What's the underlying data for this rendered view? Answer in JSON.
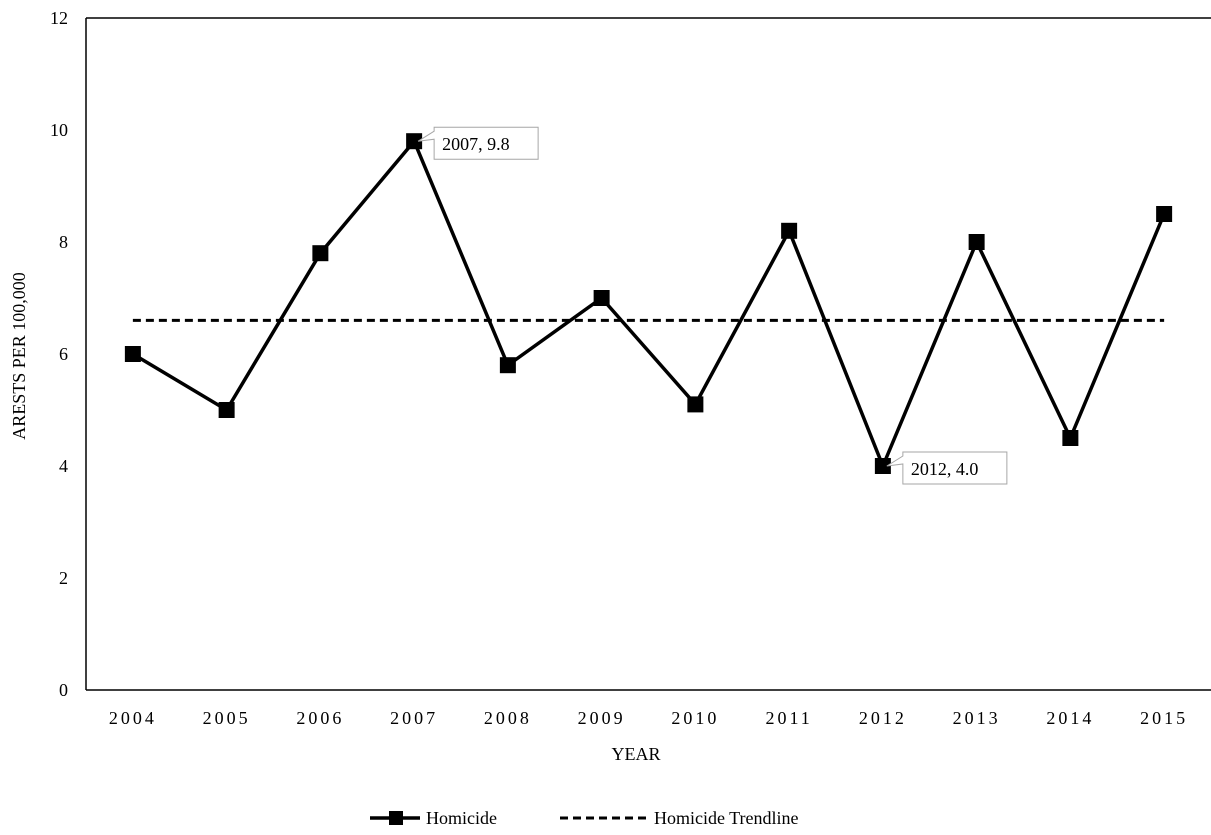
{
  "chart_data": {
    "type": "line",
    "title": "",
    "xlabel": "YEAR",
    "ylabel": "ARESTS PER 100,000",
    "categories": [
      "2004",
      "2005",
      "2006",
      "2007",
      "2008",
      "2009",
      "2010",
      "2011",
      "2012",
      "2013",
      "2014",
      "2015"
    ],
    "ylim": [
      0,
      12
    ],
    "yticks": [
      0,
      2,
      4,
      6,
      8,
      10,
      12
    ],
    "grid": false,
    "legend_position": "bottom",
    "series": [
      {
        "name": "Homicide",
        "values": [
          6.0,
          5.0,
          7.8,
          9.8,
          5.8,
          7.0,
          5.1,
          8.2,
          4.0,
          8.0,
          4.5,
          8.5
        ],
        "style": "solid",
        "marker": "square",
        "color": "#000000"
      },
      {
        "name": "Homicide Trendline",
        "values": [
          6.6,
          6.6,
          6.6,
          6.6,
          6.6,
          6.6,
          6.6,
          6.6,
          6.6,
          6.6,
          6.6,
          6.6
        ],
        "style": "dashed",
        "marker": "none",
        "color": "#000000"
      }
    ],
    "annotations": [
      {
        "category": "2007",
        "value": 9.8,
        "text": "2007, 9.8"
      },
      {
        "category": "2012",
        "value": 4.0,
        "text": "2012, 4.0"
      }
    ]
  }
}
